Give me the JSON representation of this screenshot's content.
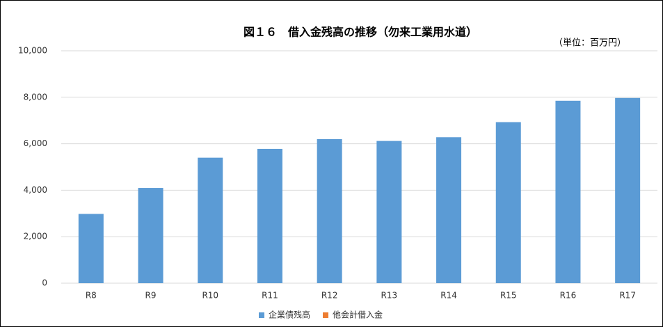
{
  "chart_data": {
    "type": "stacked-bar",
    "title": "図１６　借入金残高の推移（勿来工業用水道）",
    "subtitle": "（単位：百万円）",
    "categories": [
      "R8",
      "R9",
      "R10",
      "R11",
      "R12",
      "R13",
      "R14",
      "R15",
      "R16",
      "R17"
    ],
    "series": [
      {
        "name": "企業債残高",
        "color": "#5b9bd5",
        "values": [
          2980,
          4100,
          5400,
          5780,
          6200,
          6120,
          6280,
          6930,
          7850,
          7970
        ]
      },
      {
        "name": "他会計借入金",
        "color": "#ed7d31",
        "values": [
          0,
          0,
          0,
          0,
          0,
          0,
          0,
          0,
          0,
          0
        ]
      }
    ],
    "ylim": [
      0,
      10000
    ],
    "yticks": [
      0,
      {
        "value": 2000,
        "label": "2,000"
      },
      {
        "value": 4000,
        "label": "4,000"
      },
      {
        "value": 6000,
        "label": "6,000"
      },
      {
        "value": 8000,
        "label": "8,000"
      },
      {
        "value": 10000,
        "label": "10,000"
      }
    ],
    "grid": true,
    "legend": "bottom"
  }
}
